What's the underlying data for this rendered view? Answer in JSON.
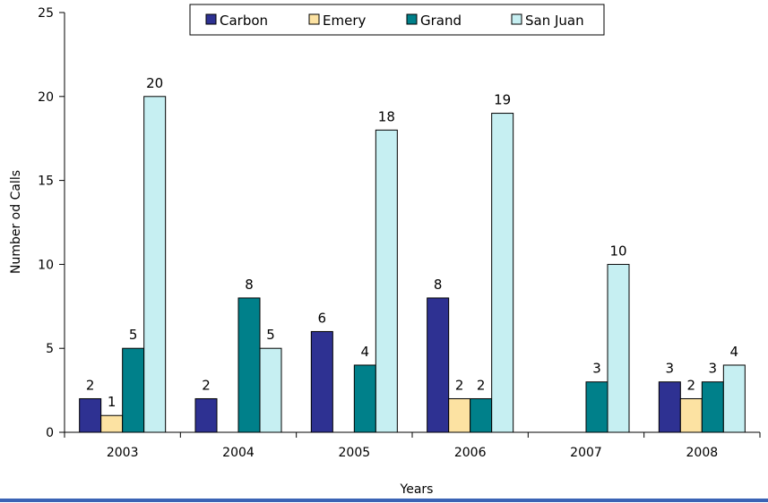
{
  "chart_data": {
    "type": "bar",
    "categories": [
      "2003",
      "2004",
      "2005",
      "2006",
      "2007",
      "2008"
    ],
    "series": [
      {
        "name": "Carbon",
        "color": "#2e3192",
        "values": [
          2,
          2,
          6,
          8,
          null,
          3
        ]
      },
      {
        "name": "Emery",
        "color": "#fce2a2",
        "values": [
          1,
          null,
          null,
          2,
          null,
          2
        ]
      },
      {
        "name": "Grand",
        "color": "#00808a",
        "values": [
          5,
          8,
          4,
          2,
          3,
          3
        ]
      },
      {
        "name": "San Juan",
        "color": "#c6eff2",
        "values": [
          20,
          5,
          18,
          19,
          10,
          4
        ]
      }
    ],
    "xlabel": "Years",
    "ylabel": "Number od Calls",
    "ylim": [
      0,
      25
    ],
    "yticks": [
      0,
      5,
      10,
      15,
      20,
      25
    ],
    "legend_position": "top",
    "grid": false
  }
}
